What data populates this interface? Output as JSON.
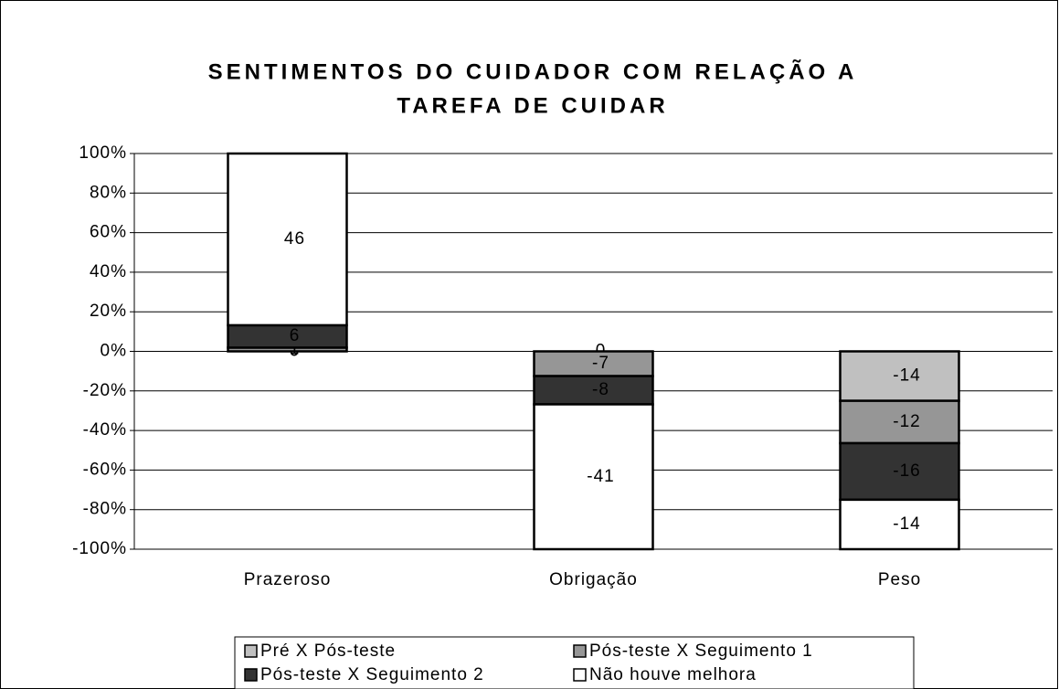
{
  "chart_data": {
    "type": "stacked_bar_percent",
    "title": [
      "SENTIMENTOS DO CUIDADOR COM RELAÇÃO A",
      "TAREFA DE CUIDAR"
    ],
    "categories": [
      "Prazeroso",
      "Obrigação",
      "Peso"
    ],
    "series": [
      {
        "name": "Pré X Pós-teste",
        "color": "#c0c0c0",
        "values": [
          0,
          0,
          -14
        ]
      },
      {
        "name": "Pós-teste X Seguimento 1",
        "color": "#969696",
        "values": [
          1,
          -7,
          -12
        ]
      },
      {
        "name": "Pós-teste X Seguimento 2",
        "color": "#333333",
        "values": [
          6,
          -8,
          -16
        ]
      },
      {
        "name": "Não houve melhora",
        "color": "#ffffff",
        "values": [
          46,
          -41,
          -14
        ]
      }
    ],
    "ylim": [
      -100,
      100
    ],
    "yticks": [
      {
        "value": -100,
        "label": "-100%"
      },
      {
        "value": -80,
        "label": "-80%"
      },
      {
        "value": -60,
        "label": "-60%"
      },
      {
        "value": -40,
        "label": "-40%"
      },
      {
        "value": -20,
        "label": "-20%"
      },
      {
        "value": 0,
        "label": "0%"
      },
      {
        "value": 20,
        "label": "20%"
      },
      {
        "value": 40,
        "label": "40%"
      },
      {
        "value": 60,
        "label": "60%"
      },
      {
        "value": 80,
        "label": "80%"
      },
      {
        "value": 100,
        "label": "100%"
      }
    ],
    "grid": true
  }
}
